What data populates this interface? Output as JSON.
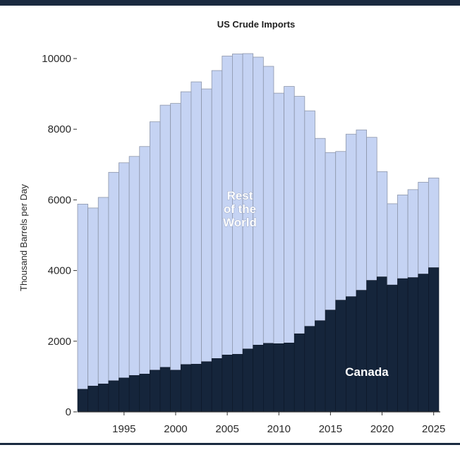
{
  "chart_data": {
    "type": "bar",
    "stacked": true,
    "title": "US Crude Imports",
    "xlabel": "",
    "ylabel": "Thousand Barrels per Day",
    "ylim": [
      0,
      10000
    ],
    "yticks": [
      0,
      2000,
      4000,
      6000,
      8000,
      10000
    ],
    "xticks": [
      1995,
      2000,
      2005,
      2010,
      2015,
      2020,
      2025
    ],
    "categories": [
      1991,
      1992,
      1993,
      1994,
      1995,
      1996,
      1997,
      1998,
      1999,
      2000,
      2001,
      2002,
      2003,
      2004,
      2005,
      2006,
      2007,
      2008,
      2009,
      2010,
      2011,
      2012,
      2013,
      2014,
      2015,
      2016,
      2017,
      2018,
      2019,
      2020,
      2021,
      2022,
      2023,
      2024,
      2025
    ],
    "series": [
      {
        "name": "Canada",
        "color": "#15253b",
        "values": [
          640,
          730,
          790,
          880,
          960,
          1030,
          1070,
          1180,
          1260,
          1180,
          1340,
          1350,
          1420,
          1510,
          1610,
          1630,
          1780,
          1890,
          1940,
          1930,
          1950,
          2210,
          2420,
          2580,
          2880,
          3160,
          3260,
          3440,
          3720,
          3820,
          3590,
          3770,
          3800,
          3900,
          4080
        ]
      },
      {
        "name": "Rest of the World",
        "color": "#c5d3f3",
        "values": [
          5240,
          5040,
          5280,
          5900,
          6090,
          6200,
          6440,
          7030,
          7420,
          7550,
          7720,
          7990,
          7720,
          8150,
          8460,
          8500,
          8360,
          8150,
          7840,
          7090,
          7260,
          6720,
          6100,
          5160,
          4460,
          4210,
          4600,
          4540,
          4050,
          2980,
          2300,
          2370,
          2490,
          2600,
          2540
        ]
      }
    ],
    "labels": {
      "canada": "Canada",
      "rest_lines": [
        "Rest",
        "of the",
        "World"
      ]
    }
  }
}
